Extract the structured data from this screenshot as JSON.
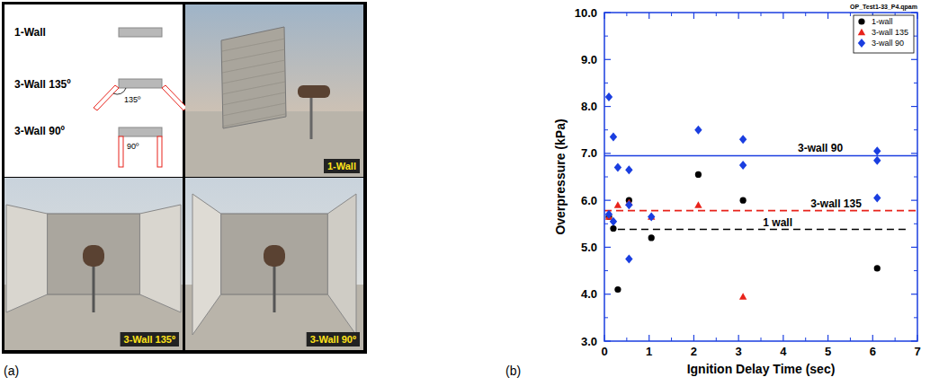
{
  "chart_data": {
    "type": "scatter",
    "title": "OP_Test1-33_P4.qpam",
    "panel_label": "(b)",
    "x_label": "Ignition Delay Time  (sec)",
    "y_label": "Overpressure (kPa)",
    "xlim": [
      0,
      7
    ],
    "xticks": [
      0,
      1,
      2,
      3,
      4,
      5,
      6,
      7
    ],
    "ylim": [
      3,
      10
    ],
    "yticks": [
      {
        "value": 3,
        "label": "3.0"
      },
      {
        "value": 4,
        "label": "4.0"
      },
      {
        "value": 5,
        "label": "5.0"
      },
      {
        "value": 6,
        "label": "6.0"
      },
      {
        "value": 7,
        "label": "7.0"
      },
      {
        "value": 8,
        "label": "8.0"
      },
      {
        "value": 9,
        "label": "9.0"
      },
      {
        "value": 10,
        "label": "10.0"
      }
    ],
    "legend": "top-right",
    "series": [
      {
        "name": "1-wall",
        "color": "#000000",
        "marker": "circle",
        "x": [
          0.1,
          0.2,
          0.3,
          0.55,
          1.05,
          2.1,
          3.1,
          6.1
        ],
        "values": [
          5.65,
          5.4,
          4.1,
          6.0,
          5.2,
          6.55,
          6.0,
          4.55
        ]
      },
      {
        "name": "3-wall 135",
        "color": "#e8231b",
        "marker": "triangle",
        "x": [
          0.1,
          0.3,
          0.55,
          1.05,
          2.1,
          3.1
        ],
        "values": [
          5.65,
          5.9,
          5.95,
          5.65,
          5.9,
          3.95
        ]
      },
      {
        "name": "3-wall 90",
        "color": "#1a3ee0",
        "marker": "diamond",
        "x": [
          0.1,
          0.1,
          0.2,
          0.2,
          0.3,
          0.55,
          0.55,
          0.55,
          1.05,
          2.1,
          3.1,
          3.1,
          6.1,
          6.1,
          6.1
        ],
        "values": [
          8.2,
          5.7,
          7.35,
          5.55,
          6.7,
          6.65,
          5.9,
          4.75,
          5.65,
          7.5,
          7.3,
          6.75,
          7.05,
          6.85,
          6.05
        ]
      }
    ],
    "reference_lines": [
      {
        "label": "3-wall 90",
        "color": "#1a3ee0",
        "line_style": "solid",
        "x": [
          0,
          7
        ],
        "y": 6.95
      },
      {
        "label": "3-wall 135",
        "color": "#e8231b",
        "line_style": "dashed",
        "x": [
          0,
          7
        ],
        "y": 5.78
      },
      {
        "label": "1 wall",
        "color": "#000000",
        "line_style": "dashed",
        "x": [
          0.3,
          6.8
        ],
        "y": 5.38
      }
    ]
  },
  "panel_a": {
    "label": "(a)",
    "diagram": {
      "labels": [
        "1-Wall",
        "3-Wall 135º",
        "3-Wall 90º"
      ],
      "angles": [
        "135º",
        "90º"
      ]
    },
    "photo_captions": [
      "1-Wall",
      "3-Wall 135º",
      "3-Wall 90º"
    ]
  }
}
